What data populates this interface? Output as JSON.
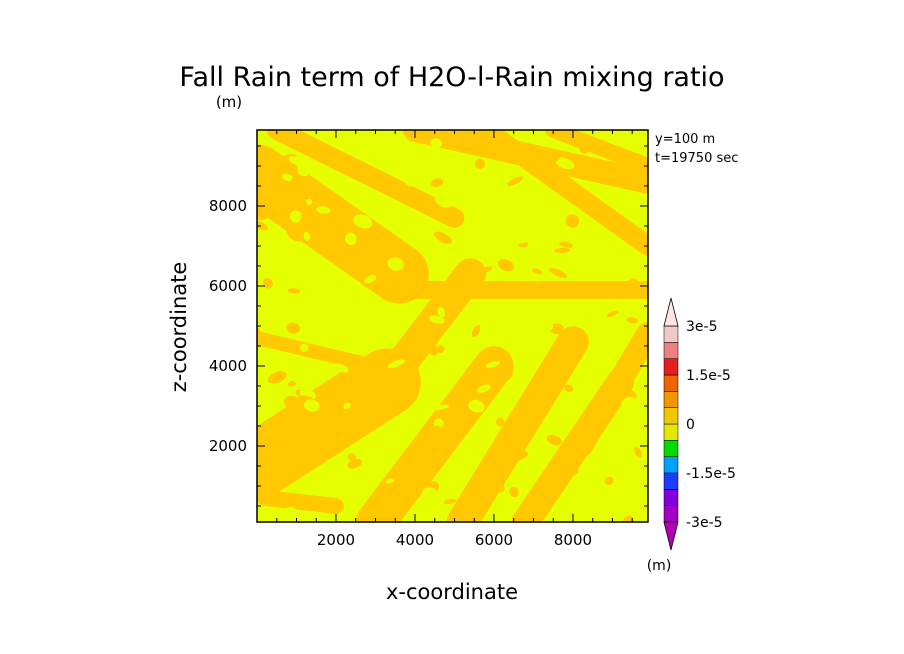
{
  "chart_data": {
    "type": "heatmap",
    "title": "Fall Rain term of H2O-l-Rain mixing ratio",
    "y_unit_label": "(m)",
    "annotations": [
      "y=100 m",
      "t=19750 sec"
    ],
    "xlabel": "x-coordinate",
    "ylabel": "z-coordinate",
    "xlim": [
      0,
      9900
    ],
    "ylim": [
      100,
      9900
    ],
    "x_ticks": [
      2000,
      4000,
      6000,
      8000
    ],
    "x_tick_labels": [
      "2000",
      "4000",
      "6000",
      "8000"
    ],
    "y_ticks": [
      2000,
      4000,
      6000,
      8000
    ],
    "y_tick_labels": [
      "2000",
      "4000",
      "6000",
      "8000"
    ],
    "grid": false,
    "colorbar": {
      "unit_label": "(m)",
      "labels": [
        {
          "value": 3e-05,
          "text": "3e-5"
        },
        {
          "value": 1.5e-05,
          "text": "1.5e-5"
        },
        {
          "value": 0,
          "text": "0"
        },
        {
          "value": -1.5e-05,
          "text": "-1.5e-5"
        },
        {
          "value": -3e-05,
          "text": "-3e-5"
        }
      ],
      "levels": [
        -3e-05,
        -2.5e-05,
        -2e-05,
        -1.5e-05,
        -1e-05,
        -5e-06,
        0,
        5e-06,
        1e-05,
        1.5e-05,
        2e-05,
        2.5e-05,
        3e-05
      ],
      "colors_bottom_to_top": [
        "#a000c8",
        "#8200dc",
        "#1e3cff",
        "#00a0ff",
        "#00dc00",
        "#e6e600",
        "#f0c800",
        "#f09600",
        "#f06400",
        "#e61e1e",
        "#f08080",
        "#f0c8c8"
      ],
      "over_color": "#ffe6e6",
      "under_color": "#b400b4"
    },
    "field_colors": {
      "negative_small": "#e6ff00",
      "positive_small": "#ffc800"
    },
    "field_description_values": {
      "background_level": [
        -5e-06,
        0
      ],
      "band_level": [
        0,
        5e-06
      ]
    },
    "bands": [
      {
        "from": [
          0,
          8800
        ],
        "to": [
          3600,
          6300
        ],
        "width": 1500
      },
      {
        "from": [
          500,
          9900
        ],
        "to": [
          5000,
          7700
        ],
        "width": 500
      },
      {
        "from": [
          4000,
          9900
        ],
        "to": [
          9900,
          8600
        ],
        "width": 600
      },
      {
        "from": [
          5800,
          9900
        ],
        "to": [
          9900,
          7000
        ],
        "width": 500
      },
      {
        "from": [
          7500,
          9900
        ],
        "to": [
          9900,
          9000
        ],
        "width": 400
      },
      {
        "from": [
          3600,
          5900
        ],
        "to": [
          9900,
          5900
        ],
        "width": 450
      },
      {
        "from": [
          0,
          4700
        ],
        "to": [
          3400,
          3900
        ],
        "width": 350
      },
      {
        "from": [
          0,
          1500
        ],
        "to": [
          3300,
          3600
        ],
        "width": 1700
      },
      {
        "from": [
          3300,
          3600
        ],
        "to": [
          5400,
          6300
        ],
        "width": 800
      },
      {
        "from": [
          3000,
          100
        ],
        "to": [
          6000,
          4000
        ],
        "width": 1000
      },
      {
        "from": [
          5200,
          100
        ],
        "to": [
          8000,
          4600
        ],
        "width": 800
      },
      {
        "from": [
          6800,
          100
        ],
        "to": [
          9200,
          3600
        ],
        "width": 700
      },
      {
        "from": [
          8200,
          2000
        ],
        "to": [
          9900,
          4800
        ],
        "width": 600
      },
      {
        "from": [
          200,
          700
        ],
        "to": [
          2000,
          500
        ],
        "width": 400
      }
    ]
  }
}
